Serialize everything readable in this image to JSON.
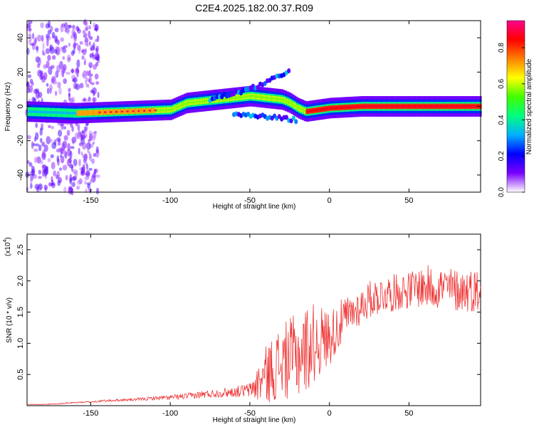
{
  "figure_title": "C2E4.2025.182.00.37.R09",
  "chart_data": [
    {
      "type": "heatmap",
      "name": "spectrogram",
      "xlabel": "Height of straight line (km)",
      "ylabel": "Frequency (Hz)",
      "xlim": [
        -190,
        95
      ],
      "ylim": [
        -50,
        50
      ],
      "xticks": [
        -150,
        -100,
        -50,
        0,
        50
      ],
      "xtick_labels": [
        "-150",
        "-100",
        "-50",
        "0",
        "50"
      ],
      "yticks": [
        -40,
        -20,
        0,
        20,
        40
      ],
      "ytick_labels": [
        "-40",
        "-20",
        "0",
        "20",
        "40"
      ],
      "colorbar": {
        "label": "Normalized spectral amplitude",
        "range": [
          0,
          0.95
        ],
        "ticks": [
          0.0,
          0.2,
          0.4,
          0.6,
          0.8
        ],
        "tick_labels": [
          "0.0",
          "0.2",
          "0.4",
          "0.6",
          "0.8"
        ],
        "colors": [
          "#ffffff",
          "#7a00ff",
          "#0000ff",
          "#00b0ff",
          "#00ff80",
          "#40ff00",
          "#ffff00",
          "#ff8000",
          "#ff0000",
          "#ff0090"
        ]
      },
      "ridge": {
        "description_points_x": [
          -190,
          -160,
          -130,
          -100,
          -90,
          -80,
          -70,
          -60,
          -50,
          -40,
          -30,
          -25,
          -20,
          -15,
          0,
          20,
          40,
          60,
          80,
          95
        ],
        "description_points_y": [
          -3,
          -4,
          -3,
          -2,
          2,
          3,
          4,
          5,
          6,
          5,
          4,
          2,
          -1,
          -3,
          -1,
          0,
          0,
          0,
          0,
          0
        ],
        "peak_amplitude": 0.95
      },
      "branches": [
        {
          "x": [
            -75,
            -50,
            -30,
            -25
          ],
          "y": [
            4,
            10,
            18,
            22
          ]
        },
        {
          "x": [
            -60,
            -40,
            -30,
            -20
          ],
          "y": [
            -5,
            -6,
            -7,
            -8
          ]
        }
      ]
    },
    {
      "type": "line",
      "name": "snr",
      "xlabel": "Height of straight line (km)",
      "ylabel": "SNR (10 * v/v)",
      "y_multiplier_label": "(x10",
      "y_multiplier_exp": "4",
      "y_multiplier_close": ")",
      "xlim": [
        -190,
        95
      ],
      "ylim": [
        0,
        2.75
      ],
      "xticks": [
        -150,
        -100,
        -50,
        0,
        50
      ],
      "xtick_labels": [
        "-150",
        "-100",
        "-50",
        "0",
        "50"
      ],
      "yticks": [
        0.5,
        1.0,
        1.5,
        2.0,
        2.5
      ],
      "ytick_labels": [
        "0.5",
        "1.0",
        "1.5",
        "2.0",
        "2.5"
      ],
      "series": [
        {
          "color": "#ee3333",
          "x": [
            -190,
            -180,
            -170,
            -160,
            -150,
            -140,
            -130,
            -120,
            -110,
            -100,
            -90,
            -80,
            -70,
            -60,
            -50,
            -45,
            -40,
            -35,
            -30,
            -25,
            -20,
            -15,
            -10,
            -5,
            0,
            5,
            10,
            15,
            20,
            25,
            30,
            35,
            40,
            45,
            50,
            55,
            60,
            65,
            70,
            75,
            80,
            85,
            90,
            95
          ],
          "y": [
            0.02,
            0.02,
            0.03,
            0.05,
            0.06,
            0.08,
            0.09,
            0.1,
            0.12,
            0.13,
            0.15,
            0.18,
            0.2,
            0.22,
            0.25,
            0.35,
            0.5,
            0.6,
            0.7,
            0.75,
            0.8,
            0.9,
            1.0,
            1.05,
            1.1,
            1.25,
            1.4,
            1.5,
            1.6,
            1.7,
            1.75,
            1.8,
            1.8,
            1.85,
            1.85,
            1.9,
            1.9,
            1.9,
            1.9,
            1.88,
            1.85,
            1.85,
            1.85,
            1.85
          ],
          "noise": [
            0.005,
            0.005,
            0.01,
            0.01,
            0.015,
            0.02,
            0.02,
            0.025,
            0.03,
            0.04,
            0.05,
            0.06,
            0.07,
            0.08,
            0.12,
            0.3,
            0.45,
            0.55,
            0.6,
            0.65,
            0.7,
            0.7,
            0.65,
            0.55,
            0.45,
            0.4,
            0.35,
            0.3,
            0.3,
            0.3,
            0.3,
            0.3,
            0.3,
            0.3,
            0.3,
            0.32,
            0.35,
            0.35,
            0.35,
            0.35,
            0.35,
            0.35,
            0.35,
            0.35
          ]
        }
      ]
    }
  ]
}
